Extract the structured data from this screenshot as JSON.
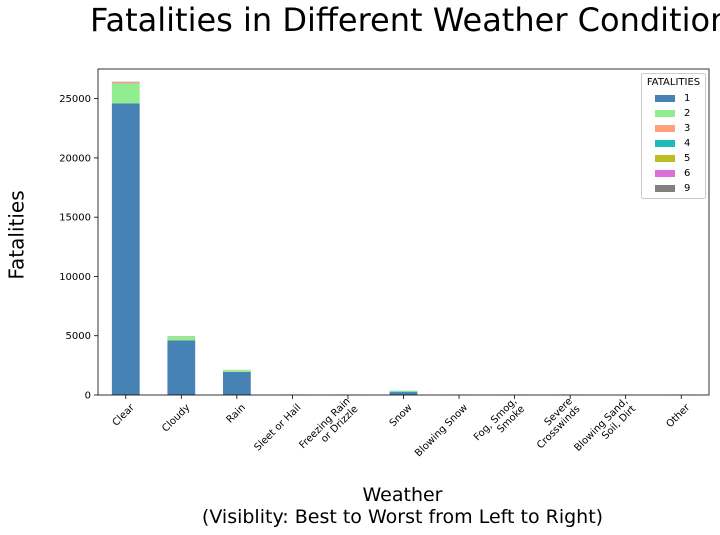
{
  "chart_data": {
    "type": "bar",
    "stacked": true,
    "title": "Fatalities in Different Weather Conditions",
    "ylabel": "Fatalities",
    "xlabel": [
      "Weather",
      "(Visiblity: Best to Worst from Left to Right)"
    ],
    "ylim": [
      0,
      27500
    ],
    "yticks": [
      0,
      5000,
      10000,
      15000,
      20000,
      25000
    ],
    "grid": false,
    "legend_title": "FATALITIES",
    "legend_position": "top-right",
    "categories": [
      "Clear",
      "Cloudy",
      "Rain",
      "Sleet or Hail",
      "Freezing Rain\nor Drizzle",
      "Snow",
      "Blowing Snow",
      "Fog, Smog,\nSmoke",
      "Severe\nCrosswinds",
      "Blowing Sand,\nSoil, Dirt",
      "Other"
    ],
    "series": [
      {
        "name": "1",
        "color": "#4682b4",
        "values": [
          24600,
          4600,
          1950,
          20,
          20,
          250,
          15,
          10,
          10,
          5,
          10
        ]
      },
      {
        "name": "2",
        "color": "#90ee90",
        "values": [
          1650,
          330,
          150,
          5,
          5,
          60,
          5,
          5,
          5,
          0,
          5
        ]
      },
      {
        "name": "3",
        "color": "#ffa07a",
        "values": [
          130,
          30,
          15,
          0,
          0,
          5,
          0,
          0,
          0,
          0,
          0
        ]
      },
      {
        "name": "4",
        "color": "#1dbab8",
        "values": [
          30,
          8,
          5,
          0,
          0,
          35,
          0,
          0,
          0,
          0,
          0
        ]
      },
      {
        "name": "5",
        "color": "#bcbd22",
        "values": [
          10,
          3,
          2,
          0,
          0,
          0,
          0,
          0,
          0,
          0,
          0
        ]
      },
      {
        "name": "6",
        "color": "#da70d6",
        "values": [
          5,
          1,
          1,
          0,
          0,
          0,
          0,
          0,
          0,
          0,
          0
        ]
      },
      {
        "name": "9",
        "color": "#808080",
        "values": [
          5,
          1,
          0,
          0,
          0,
          0,
          0,
          0,
          0,
          0,
          0
        ]
      }
    ]
  }
}
